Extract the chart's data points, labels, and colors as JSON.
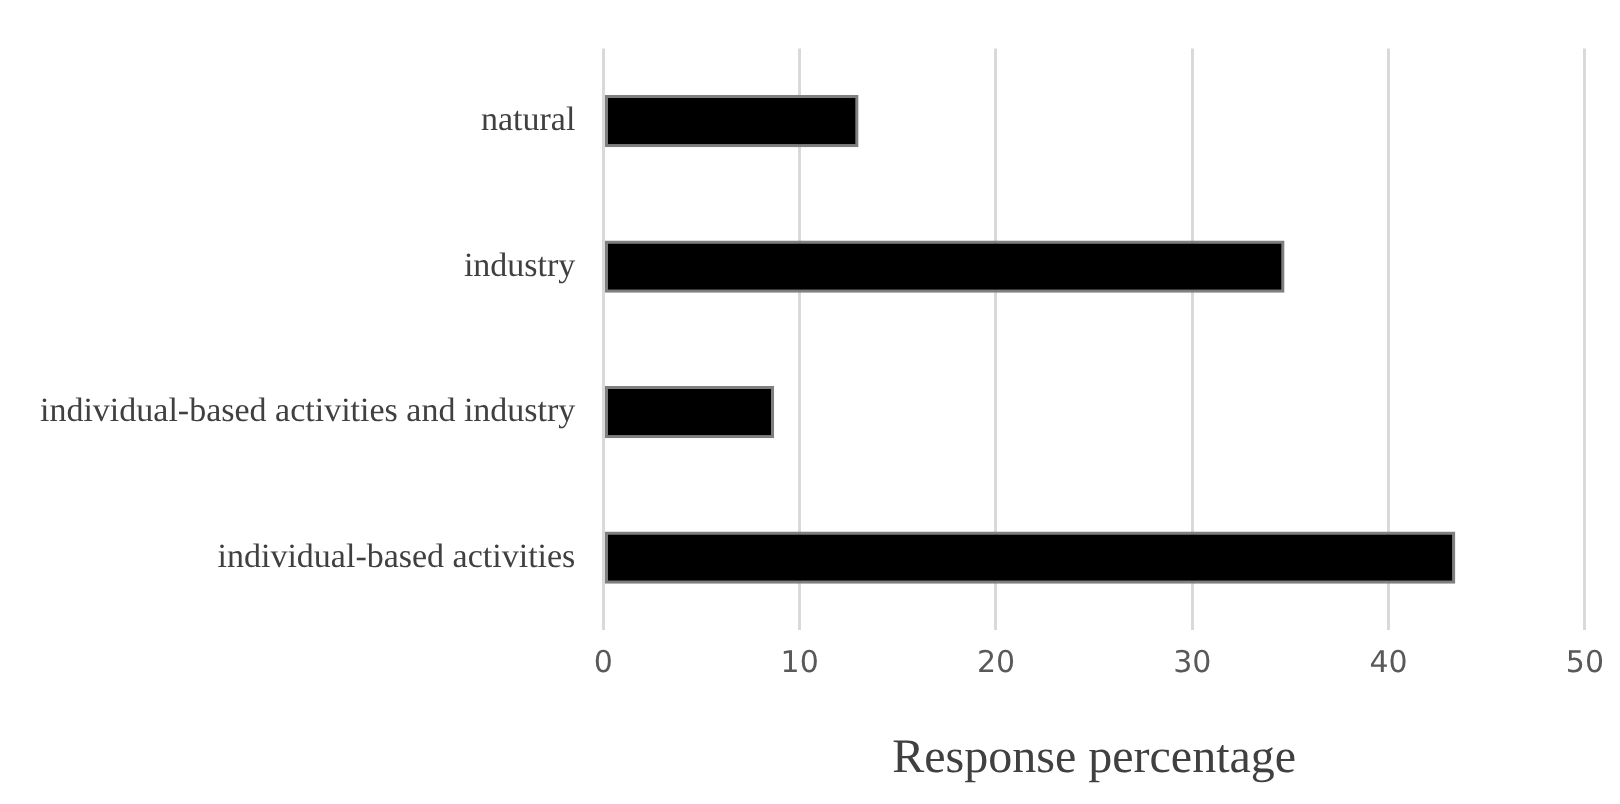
{
  "chart_data": {
    "type": "bar",
    "orientation": "horizontal",
    "xlabel": "Response percentage",
    "categories": [
      "natural",
      "industry",
      "individual-based activities and industry",
      "individual-based activities"
    ],
    "values": [
      13,
      34.7,
      8.7,
      43.4
    ],
    "color": "#000000",
    "xlim": [
      0,
      50
    ],
    "xticks": [
      0,
      10,
      20,
      30,
      40,
      50
    ],
    "grid": "x",
    "legend": false
  }
}
